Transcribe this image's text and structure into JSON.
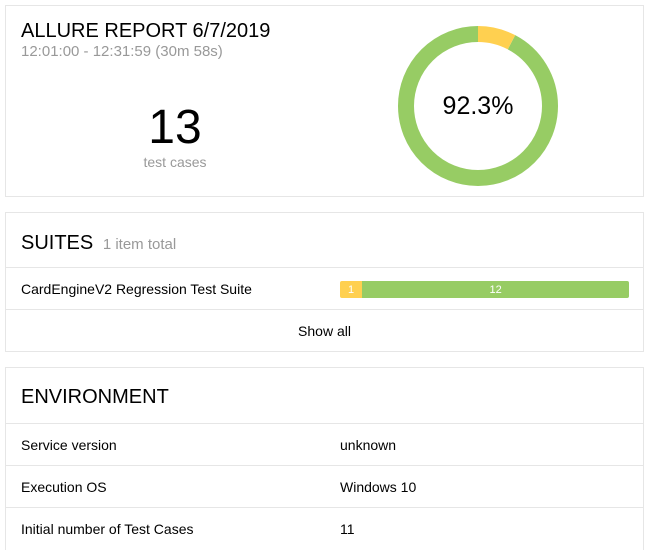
{
  "summary": {
    "title": "ALLURE REPORT 6/7/2019",
    "time_range": "12:01:00 - 12:31:59 (30m 58s)",
    "count": "13",
    "count_label": "test cases",
    "percent_label": "92.3%",
    "pass_fraction": 0.923,
    "broken_fraction": 0.077,
    "colors": {
      "passed": "#97cc64",
      "broken": "#ffd050"
    }
  },
  "suites": {
    "title": "SUITES",
    "subtitle": "1 item total",
    "items": [
      {
        "name": "CardEngineV2 Regression Test Suite",
        "broken": 1,
        "passed": 12,
        "broken_label": "1",
        "passed_label": "12"
      }
    ],
    "show_all": "Show all"
  },
  "environment": {
    "title": "ENVIRONMENT",
    "rows": [
      {
        "key": "Service version",
        "value": "unknown"
      },
      {
        "key": "Execution OS",
        "value": "Windows 10"
      },
      {
        "key": "Initial number of Test Cases",
        "value": "11"
      }
    ]
  }
}
